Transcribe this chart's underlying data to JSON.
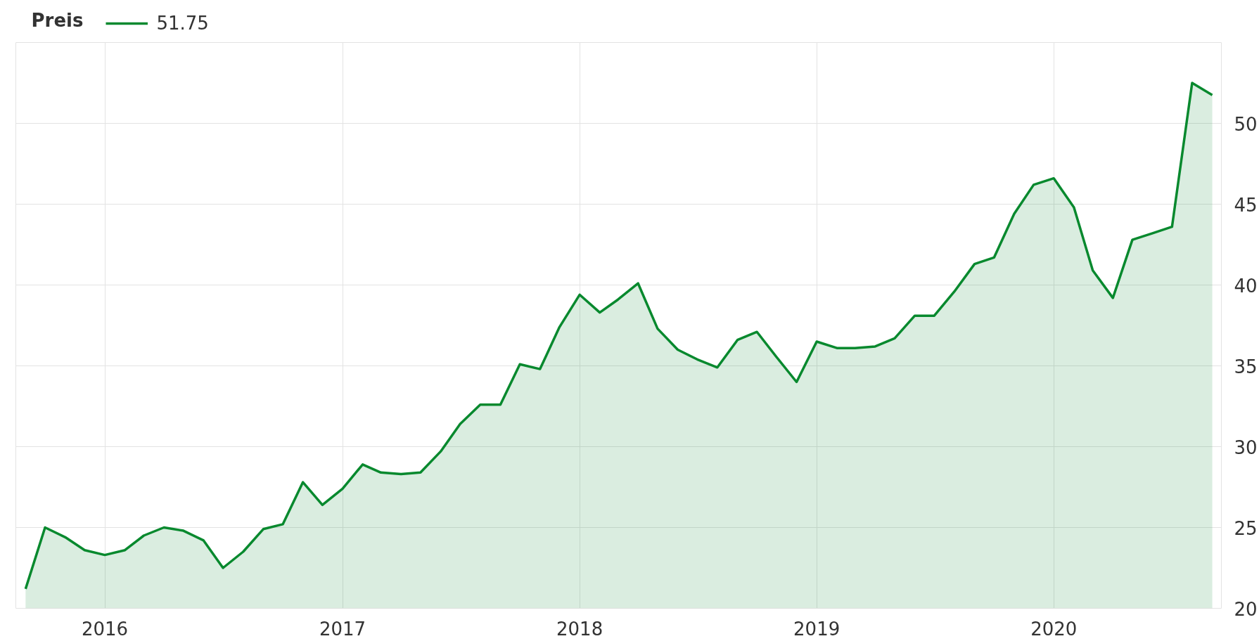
{
  "chart_data": {
    "type": "area",
    "legend_title": "Preis",
    "x": [
      "2015-09",
      "2015-10",
      "2015-11",
      "2015-12",
      "2016-01",
      "2016-02",
      "2016-03",
      "2016-04",
      "2016-05",
      "2016-06",
      "2016-07",
      "2016-08",
      "2016-09",
      "2016-10",
      "2016-11",
      "2016-12",
      "2017-01",
      "2017-02",
      "2017-03",
      "2017-04",
      "2017-05",
      "2017-06",
      "2017-07",
      "2017-08",
      "2017-09",
      "2017-10",
      "2017-11",
      "2017-12",
      "2018-01",
      "2018-02",
      "2018-03",
      "2018-04",
      "2018-05",
      "2018-06",
      "2018-07",
      "2018-08",
      "2018-09",
      "2018-10",
      "2018-11",
      "2018-12",
      "2019-01",
      "2019-02",
      "2019-03",
      "2019-04",
      "2019-05",
      "2019-06",
      "2019-07",
      "2019-08",
      "2019-09",
      "2019-10",
      "2019-11",
      "2019-12",
      "2020-01",
      "2020-02",
      "2020-03",
      "2020-04",
      "2020-05",
      "2020-06",
      "2020-07",
      "2020-08",
      "2020-09"
    ],
    "series": [
      {
        "name": "51.75",
        "color": "#08892e",
        "values": [
          21.2,
          25.0,
          24.4,
          23.6,
          23.3,
          23.6,
          24.5,
          25.0,
          24.8,
          24.2,
          22.5,
          23.5,
          24.9,
          25.2,
          27.8,
          26.4,
          27.4,
          28.9,
          28.4,
          28.3,
          28.4,
          29.7,
          31.4,
          32.6,
          32.6,
          35.1,
          34.8,
          37.4,
          39.4,
          38.3,
          39.1,
          40.1,
          37.3,
          36.0,
          35.4,
          34.9,
          36.6,
          37.1,
          35.5,
          34.0,
          36.5,
          36.1,
          36.1,
          36.2,
          36.7,
          38.1,
          38.1,
          39.6,
          41.3,
          41.7,
          44.4,
          46.2,
          46.6,
          44.8,
          40.9,
          39.2,
          42.8,
          43.2,
          43.6,
          52.5,
          51.75
        ]
      }
    ],
    "xlim": [
      "2015-08-17",
      "2020-09-15"
    ],
    "xticks": [
      "2016",
      "2017",
      "2018",
      "2019",
      "2020"
    ],
    "ylim": [
      20,
      55
    ],
    "yticks": [
      20,
      25,
      30,
      35,
      40,
      45,
      50
    ],
    "grid": true,
    "legend": "top left",
    "line_style": "solid"
  }
}
